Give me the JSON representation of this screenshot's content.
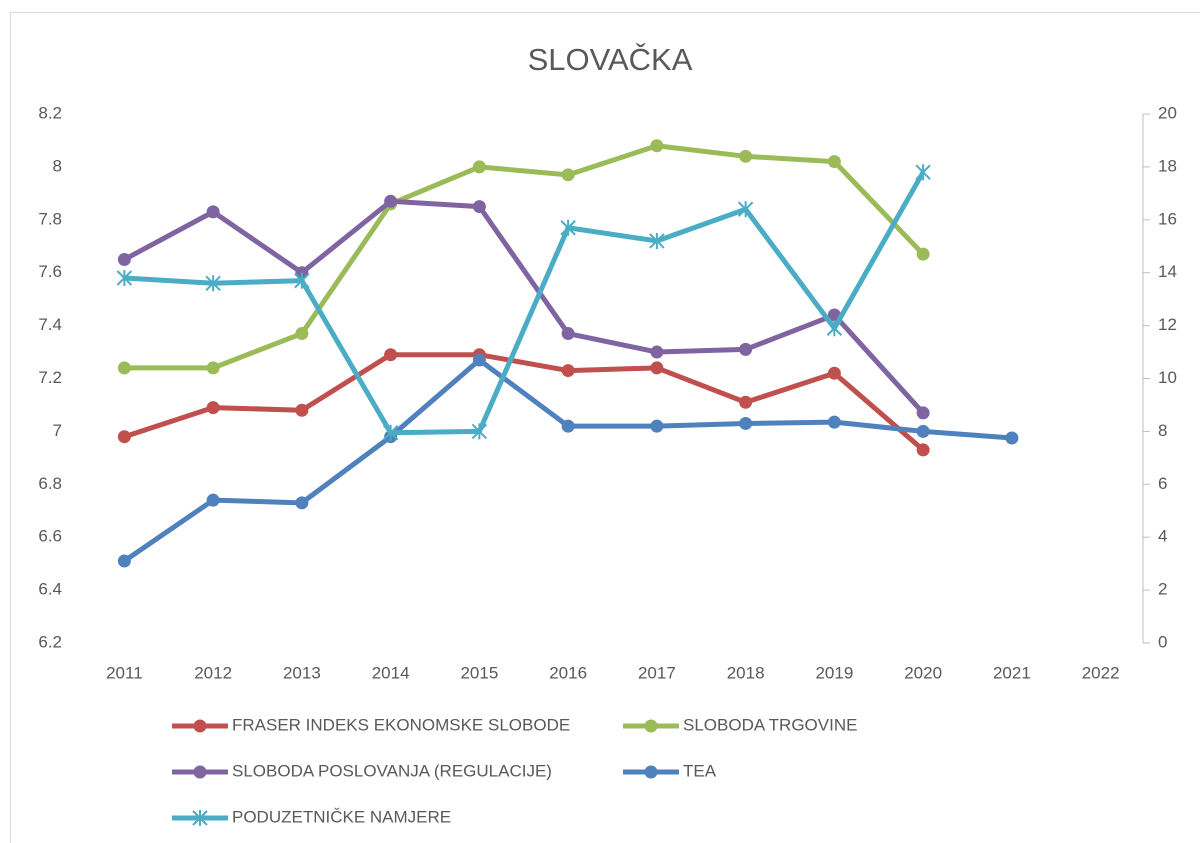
{
  "chart_data": {
    "type": "line",
    "title": "SLOVAČKA",
    "categories": [
      "2011",
      "2012",
      "2013",
      "2014",
      "2015",
      "2016",
      "2017",
      "2018",
      "2019",
      "2020",
      "2021",
      "2022"
    ],
    "series": [
      {
        "name": "FRASER INDEKS EKONOMSKE SLOBODE",
        "color": "#c0504d",
        "marker": "circle",
        "values": [
          6.98,
          7.09,
          7.08,
          7.29,
          7.29,
          7.23,
          7.24,
          7.11,
          7.22,
          6.93,
          null,
          null
        ]
      },
      {
        "name": "SLOBODA TRGOVINE",
        "color": "#9bbb59",
        "marker": "circle",
        "values": [
          7.24,
          7.24,
          7.37,
          7.86,
          8.0,
          7.97,
          8.08,
          8.04,
          8.02,
          7.67,
          null,
          null
        ]
      },
      {
        "name": "SLOBODA POSLOVANJA (REGULACIJE)",
        "color": "#8064a2",
        "marker": "circle",
        "values": [
          7.65,
          7.83,
          7.6,
          7.87,
          7.85,
          7.37,
          7.3,
          7.31,
          7.44,
          7.07,
          null,
          null
        ]
      },
      {
        "name": "TEA",
        "color": "#4f81bd",
        "marker": "circle",
        "axis": "y2",
        "values": [
          3.1,
          5.4,
          5.3,
          7.8,
          10.7,
          8.2,
          8.2,
          8.3,
          8.35,
          8.0,
          7.75,
          null
        ]
      },
      {
        "name": "PODUZETNIČKE NAMJERE",
        "color": "#4bacc6",
        "marker": "star",
        "axis": "y2",
        "values": [
          13.8,
          13.6,
          13.7,
          7.95,
          8.0,
          15.7,
          15.2,
          16.4,
          11.9,
          17.8,
          null,
          null
        ]
      }
    ],
    "ylim": [
      6.2,
      8.2
    ],
    "yticks": [
      {
        "value": 6.2,
        "label": "6.2"
      },
      {
        "value": 6.4,
        "label": "6.4"
      },
      {
        "value": 6.6,
        "label": "6.6"
      },
      {
        "value": 6.8,
        "label": "6.8"
      },
      7,
      {
        "value": 7.2,
        "label": "7.2"
      },
      {
        "value": 7.4,
        "label": "7.4"
      },
      {
        "value": 7.6,
        "label": "7.6"
      },
      {
        "value": 7.8,
        "label": "7.8"
      },
      8,
      {
        "value": 8.2,
        "label": "8.2"
      }
    ],
    "y2lim": [
      0,
      20
    ],
    "y2ticks": [
      0,
      2,
      4,
      6,
      8,
      10,
      12,
      14,
      16,
      18,
      20
    ],
    "legend": "bottom"
  }
}
